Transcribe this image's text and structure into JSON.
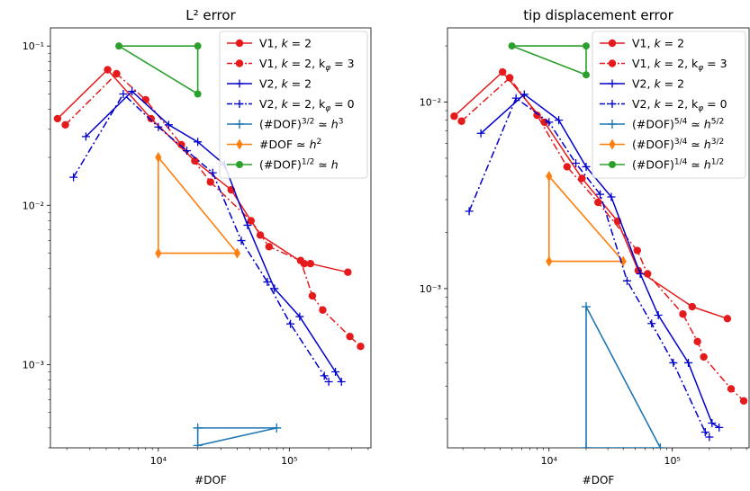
{
  "colors": {
    "red": "#e41a1c",
    "blue": "#0000cc",
    "tri_blue": "#1f77b4",
    "tri_orange": "#ff7f0e",
    "tri_green": "#2ca02c"
  },
  "chart_data": [
    {
      "type": "line",
      "title": "L² error",
      "xlabel": "#DOF",
      "ylabel": "",
      "x_scale": "log",
      "y_scale": "log",
      "xlim": [
        1500,
        420000
      ],
      "ylim": [
        0.0003,
        0.13
      ],
      "x_ticks": [
        "10⁴",
        "10⁵"
      ],
      "y_ticks": [
        "10⁻³",
        "10⁻²",
        "10⁻¹"
      ],
      "legend_position": "top-right",
      "series": [
        {
          "name": "V1, k = 2",
          "style": "solid-circle",
          "x": [
            1700,
            4100,
            8800,
            19000,
            36000,
            60000,
            130000,
            145000,
            280000
          ],
          "y": [
            0.035,
            0.071,
            0.035,
            0.019,
            0.0125,
            0.0065,
            0.0043,
            0.0043,
            0.0038
          ]
        },
        {
          "name": "V1, k = 2, k_φ = 3",
          "style": "dashdot-circle",
          "x": [
            1950,
            4800,
            8000,
            15000,
            25000,
            51000,
            70000,
            122000,
            150000,
            180000,
            290000,
            350000
          ],
          "y": [
            0.032,
            0.067,
            0.046,
            0.024,
            0.014,
            0.008,
            0.0055,
            0.0045,
            0.0027,
            0.0022,
            0.0015,
            0.0013
          ]
        },
        {
          "name": "V2, k = 2",
          "style": "solid-plus",
          "x": [
            2800,
            6300,
            12000,
            20000,
            32000,
            48000,
            77000,
            120000,
            225000,
            250000
          ],
          "y": [
            0.027,
            0.052,
            0.032,
            0.025,
            0.018,
            0.0075,
            0.003,
            0.002,
            0.0009,
            0.00078
          ]
        },
        {
          "name": "V2, k = 2, k_φ = 0",
          "style": "dashdot-plus",
          "x": [
            2250,
            5400,
            10000,
            16500,
            26000,
            43000,
            68000,
            102000,
            185000,
            200000
          ],
          "y": [
            0.015,
            0.05,
            0.031,
            0.022,
            0.016,
            0.006,
            0.0033,
            0.0018,
            0.00085,
            0.00078
          ]
        }
      ],
      "triangles": [
        {
          "name": "(#DOF)^3/2 ≃ h^3",
          "vertices": [
            [
              20000,
              0.00031
            ],
            [
              20000,
              0.0004
            ],
            [
              80000,
              0.0004
            ]
          ]
        },
        {
          "name": "#DOF ≃ h^2",
          "vertices": [
            [
              10000,
              0.02
            ],
            [
              10000,
              0.005
            ],
            [
              40000,
              0.005
            ]
          ]
        },
        {
          "name": "(#DOF)^1/2 ≃ h",
          "vertices": [
            [
              5000,
              0.1
            ],
            [
              20000,
              0.1
            ],
            [
              20000,
              0.05
            ]
          ]
        }
      ]
    },
    {
      "type": "line",
      "title": "tip displacement error",
      "xlabel": "#DOF",
      "ylabel": "",
      "x_scale": "log",
      "y_scale": "log",
      "xlim": [
        1500,
        420000
      ],
      "ylim": [
        0.00014,
        0.025
      ],
      "x_ticks": [
        "10⁴",
        "10⁵"
      ],
      "y_ticks": [
        "10⁻³",
        "10⁻²"
      ],
      "legend_position": "top-right",
      "series": [
        {
          "name": "V1, k = 2",
          "style": "solid-circle",
          "x": [
            1700,
            4200,
            9200,
            18500,
            36000,
            53000,
            145000,
            280000
          ],
          "y": [
            0.0084,
            0.0145,
            0.0078,
            0.0039,
            0.0023,
            0.00125,
            0.0008,
            0.00069
          ]
        },
        {
          "name": "V1, k = 2, k_φ = 3",
          "style": "dashdot-circle",
          "x": [
            1950,
            4800,
            8000,
            14000,
            25000,
            52000,
            63000,
            122000,
            160000,
            180000,
            300000,
            380000
          ],
          "y": [
            0.0079,
            0.0135,
            0.0085,
            0.0045,
            0.0029,
            0.0016,
            0.0012,
            0.00073,
            0.00052,
            0.00043,
            0.00029,
            0.00025
          ]
        },
        {
          "name": "V2, k = 2",
          "style": "solid-plus",
          "x": [
            2800,
            6300,
            12000,
            20000,
            32000,
            55000,
            77000,
            135000,
            210000,
            240000
          ],
          "y": [
            0.0068,
            0.011,
            0.008,
            0.0045,
            0.0031,
            0.0012,
            0.00072,
            0.0004,
            0.00019,
            0.00018
          ]
        },
        {
          "name": "V2, k = 2, k_φ = 0",
          "style": "dashdot-plus",
          "x": [
            2250,
            5400,
            10000,
            16500,
            26000,
            43000,
            68000,
            102000,
            185000,
            200000
          ],
          "y": [
            0.0026,
            0.0105,
            0.0078,
            0.0047,
            0.0032,
            0.0011,
            0.00065,
            0.0004,
            0.00017,
            0.00016
          ]
        }
      ],
      "triangles": [
        {
          "name": "(#DOF)^5/4 ≃ h^5/2",
          "vertices": [
            [
              20000,
              0.0008
            ],
            [
              20000,
              0.00014
            ],
            [
              80000,
              0.00014
            ]
          ]
        },
        {
          "name": "(#DOF)^3/4 ≃ h^3/2",
          "vertices": [
            [
              10000,
              0.004
            ],
            [
              10000,
              0.0014
            ],
            [
              40000,
              0.0014
            ]
          ]
        },
        {
          "name": "(#DOF)^1/4 ≃ h^1/2",
          "vertices": [
            [
              5000,
              0.02
            ],
            [
              20000,
              0.02
            ],
            [
              20000,
              0.014
            ]
          ]
        }
      ]
    }
  ]
}
